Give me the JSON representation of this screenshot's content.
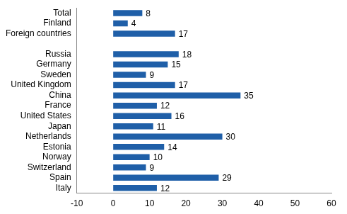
{
  "chart_data": {
    "type": "bar",
    "orientation": "horizontal",
    "categories": [
      "Total",
      "Finland",
      "Foreign countries",
      null,
      "Russia",
      "Germany",
      "Sweden",
      "United Kingdom",
      "China",
      "France",
      "United States",
      "Japan",
      "Netherlands",
      "Estonia",
      "Norway",
      "Switzerland",
      "Spain",
      "Italy"
    ],
    "values": [
      8,
      4,
      17,
      null,
      18,
      15,
      9,
      17,
      35,
      12,
      16,
      11,
      30,
      14,
      10,
      9,
      29,
      12
    ],
    "color": "#1f5fa8",
    "xlim": [
      -10,
      60
    ],
    "xticks": [
      -10,
      0,
      10,
      20,
      30,
      40,
      50,
      60
    ],
    "grid": false,
    "data_labels": true
  }
}
